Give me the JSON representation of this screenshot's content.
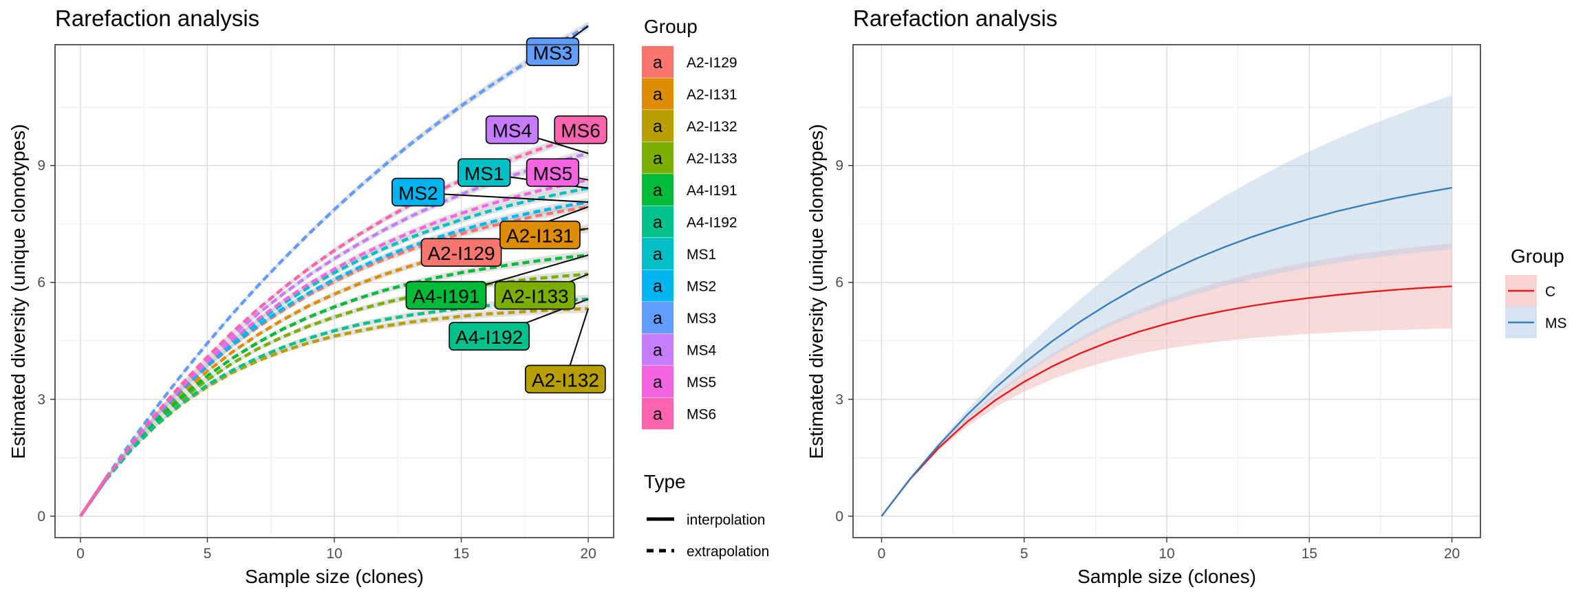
{
  "colors": {
    "A2-I129": "#F8766D",
    "A2-I131": "#DE8C00",
    "A2-I132": "#B79F00",
    "A2-I133": "#7CAE00",
    "A4-I191": "#00BA38",
    "A4-I192": "#00C08B",
    "MS1": "#00BFC4",
    "MS2": "#00B4F0",
    "MS3": "#619CFF",
    "MS4": "#C77CFF",
    "MS5": "#F564E3",
    "MS6": "#FF64B0",
    "C": "#E41A1C",
    "MS": "#377EB8"
  },
  "chart_data": [
    {
      "type": "line",
      "title": "Rarefaction analysis",
      "xlabel": "Sample size (clones)",
      "ylabel": "Estimated diversity (unique clonotypes)",
      "xlim": [
        -1,
        21
      ],
      "ylim": [
        -0.55,
        12.1
      ],
      "xticks": [
        "0",
        "5",
        "10",
        "15",
        "20"
      ],
      "yticks": [
        "0",
        "3",
        "6",
        "9"
      ],
      "interpolation_end": 1,
      "series": [
        {
          "name": "A2-I129",
          "values": [
            0,
            0.95,
            1.8,
            2.56,
            3.23,
            3.84,
            4.38,
            4.86,
            5.29,
            5.68,
            6.02,
            6.33,
            6.6,
            6.84,
            7.06,
            7.25,
            7.42,
            7.57,
            7.71,
            7.83,
            7.94
          ],
          "label": "A2-I129"
        },
        {
          "name": "A2-I131",
          "values": [
            0,
            0.95,
            1.78,
            2.51,
            3.15,
            3.72,
            4.22,
            4.66,
            5.05,
            5.4,
            5.7,
            5.97,
            6.21,
            6.42,
            6.61,
            6.78,
            6.93,
            7.06,
            7.18,
            7.28,
            7.38
          ],
          "label": "A2-I131"
        },
        {
          "name": "A2-I132",
          "values": [
            0,
            0.93,
            1.7,
            2.34,
            2.88,
            3.32,
            3.69,
            3.99,
            4.24,
            4.45,
            4.62,
            4.76,
            4.88,
            4.98,
            5.06,
            5.13,
            5.19,
            5.23,
            5.27,
            5.3,
            5.33
          ],
          "label": "A2-I132"
        },
        {
          "name": "A2-I133",
          "values": [
            0,
            0.94,
            1.74,
            2.42,
            3.0,
            3.5,
            3.93,
            4.3,
            4.61,
            4.88,
            5.11,
            5.31,
            5.48,
            5.63,
            5.75,
            5.86,
            5.95,
            6.03,
            6.1,
            6.16,
            6.21
          ],
          "label": "A2-I133"
        },
        {
          "name": "A4-I191",
          "values": [
            0,
            0.94,
            1.75,
            2.46,
            3.07,
            3.6,
            4.06,
            4.46,
            4.81,
            5.11,
            5.37,
            5.6,
            5.8,
            5.97,
            6.12,
            6.25,
            6.36,
            6.46,
            6.55,
            6.63,
            6.7
          ],
          "label": "A4-I191"
        },
        {
          "name": "A4-I192",
          "values": [
            0,
            0.93,
            1.71,
            2.36,
            2.91,
            3.37,
            3.75,
            4.07,
            4.34,
            4.57,
            4.76,
            4.92,
            5.05,
            5.16,
            5.25,
            5.33,
            5.4,
            5.45,
            5.5,
            5.54,
            5.57
          ],
          "label": "A4-I192"
        },
        {
          "name": "MS1",
          "values": [
            0,
            0.95,
            1.81,
            2.59,
            3.29,
            3.92,
            4.49,
            5.0,
            5.46,
            5.88,
            6.25,
            6.58,
            6.88,
            7.15,
            7.39,
            7.61,
            7.81,
            7.99,
            8.15,
            8.29,
            8.42
          ],
          "label": "MS1"
        },
        {
          "name": "MS2",
          "values": [
            0,
            0.95,
            1.8,
            2.57,
            3.25,
            3.86,
            4.41,
            4.9,
            5.34,
            5.73,
            6.08,
            6.39,
            6.67,
            6.92,
            7.14,
            7.34,
            7.52,
            7.68,
            7.82,
            7.95,
            8.06
          ],
          "label": "MS2"
        },
        {
          "name": "MS3",
          "values": [
            0,
            0.98,
            1.91,
            2.8,
            3.64,
            4.44,
            5.2,
            5.92,
            6.6,
            7.25,
            7.87,
            8.46,
            9.02,
            9.55,
            10.05,
            10.53,
            10.98,
            11.41,
            11.82,
            12.21,
            12.58
          ],
          "label": "MS3"
        },
        {
          "name": "MS4",
          "values": [
            0,
            0.96,
            1.83,
            2.63,
            3.36,
            4.03,
            4.64,
            5.2,
            5.71,
            6.18,
            6.61,
            7.0,
            7.36,
            7.69,
            7.99,
            8.26,
            8.51,
            8.74,
            8.95,
            9.14,
            9.31
          ],
          "label": "MS4"
        },
        {
          "name": "MS5",
          "values": [
            0,
            0.96,
            1.82,
            2.61,
            3.32,
            3.96,
            4.54,
            5.06,
            5.53,
            5.96,
            6.34,
            6.69,
            7.0,
            7.28,
            7.54,
            7.77,
            7.98,
            8.17,
            8.34,
            8.49,
            8.63
          ],
          "label": "MS5"
        },
        {
          "name": "MS6",
          "values": [
            0,
            0.96,
            1.84,
            2.65,
            3.4,
            4.09,
            4.73,
            5.32,
            5.86,
            6.36,
            6.82,
            7.24,
            7.63,
            7.99,
            8.32,
            8.62,
            8.9,
            9.16,
            9.4,
            9.62,
            9.82
          ],
          "label": "MS6"
        }
      ],
      "x": [
        0,
        1,
        2,
        3,
        4,
        5,
        6,
        7,
        8,
        9,
        10,
        11,
        12,
        13,
        14,
        15,
        16,
        17,
        18,
        19,
        20
      ],
      "legend": {
        "group_title": "Group",
        "group_items": [
          "A2-I129",
          "A2-I131",
          "A2-I132",
          "A2-I133",
          "A4-I191",
          "A4-I192",
          "MS1",
          "MS2",
          "MS3",
          "MS4",
          "MS5",
          "MS6"
        ],
        "key_glyph": "a",
        "type_title": "Type",
        "type_items": [
          {
            "label": "interpolation",
            "style": "solid"
          },
          {
            "label": "extrapolation",
            "style": "dashed"
          }
        ],
        "position": "right"
      }
    },
    {
      "type": "area",
      "title": "Rarefaction analysis",
      "xlabel": "Sample size (clones)",
      "ylabel": "Estimated diversity (unique clonotypes)",
      "xlim": [
        -1,
        21
      ],
      "ylim": [
        -0.55,
        12.1
      ],
      "xticks": [
        "0",
        "5",
        "10",
        "15",
        "20"
      ],
      "yticks": [
        "0",
        "3",
        "6",
        "9"
      ],
      "x": [
        0,
        1,
        2,
        3,
        4,
        5,
        6,
        7,
        8,
        9,
        10,
        11,
        12,
        13,
        14,
        15,
        16,
        17,
        18,
        19,
        20
      ],
      "series": [
        {
          "name": "C",
          "values": [
            0,
            0.95,
            1.75,
            2.42,
            2.98,
            3.45,
            3.85,
            4.19,
            4.48,
            4.73,
            4.94,
            5.12,
            5.27,
            5.4,
            5.51,
            5.6,
            5.68,
            5.75,
            5.81,
            5.86,
            5.9
          ],
          "lower": [
            0,
            0.93,
            1.69,
            2.3,
            2.8,
            3.2,
            3.52,
            3.78,
            3.99,
            4.16,
            4.3,
            4.41,
            4.5,
            4.57,
            4.63,
            4.68,
            4.72,
            4.75,
            4.78,
            4.8,
            4.82
          ],
          "upper": [
            0,
            0.97,
            1.81,
            2.54,
            3.16,
            3.7,
            4.18,
            4.6,
            4.97,
            5.3,
            5.58,
            5.83,
            6.04,
            6.23,
            6.39,
            6.53,
            6.65,
            6.76,
            6.85,
            6.93,
            7.0
          ]
        },
        {
          "name": "MS",
          "values": [
            0,
            0.96,
            1.82,
            2.6,
            3.3,
            3.93,
            4.5,
            5.01,
            5.47,
            5.89,
            6.26,
            6.6,
            6.9,
            7.17,
            7.41,
            7.63,
            7.83,
            8.0,
            8.16,
            8.3,
            8.43
          ],
          "lower": [
            0,
            0.94,
            1.76,
            2.47,
            3.09,
            3.63,
            4.1,
            4.51,
            4.87,
            5.18,
            5.45,
            5.69,
            5.9,
            6.08,
            6.24,
            6.38,
            6.5,
            6.61,
            6.7,
            6.78,
            6.85
          ],
          "upper": [
            0,
            0.98,
            1.88,
            2.73,
            3.52,
            4.26,
            4.95,
            5.59,
            6.19,
            6.75,
            7.27,
            7.75,
            8.2,
            8.61,
            9.0,
            9.36,
            9.69,
            10.0,
            10.28,
            10.55,
            10.8
          ]
        }
      ],
      "legend": {
        "group_title": "Group",
        "group_items": [
          "C",
          "MS"
        ],
        "position": "right"
      }
    }
  ]
}
